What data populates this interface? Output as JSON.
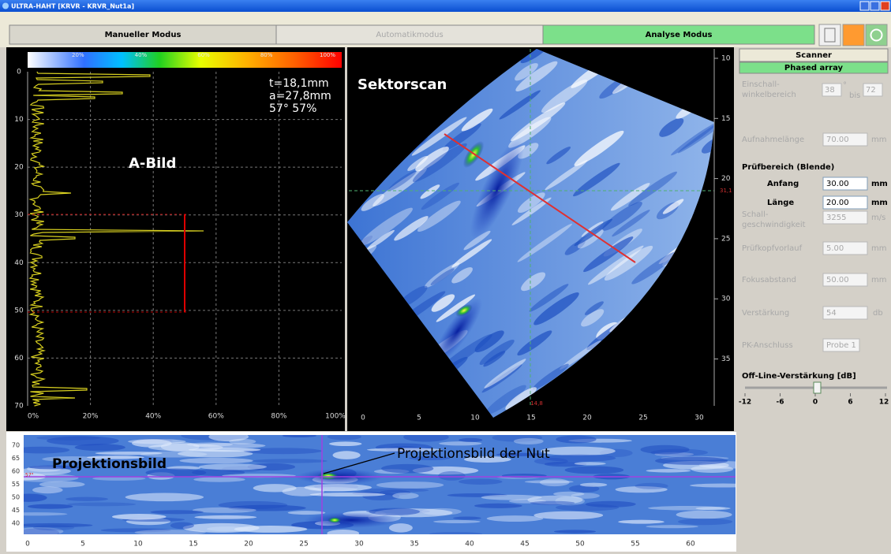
{
  "window": {
    "title": "ULTRA-HAHT [KRVR - KRVR_Nut1a]"
  },
  "tabs": [
    "Manueller Modus",
    "Automatikmodus",
    "Analyse Modus"
  ],
  "a_bild": {
    "label": "A-Bild",
    "color_scale_labels": [
      "20%",
      "40%",
      "60%",
      "80%",
      "100%"
    ],
    "y_labels": [
      "0",
      "10",
      "20",
      "30",
      "40",
      "50",
      "60",
      "70"
    ],
    "x_labels": [
      "0%",
      "20%",
      "40%",
      "60%",
      "80%",
      "100%"
    ],
    "readout": [
      "t=18,1mm",
      "a=27,8mm",
      "57° 57%"
    ]
  },
  "sektorscan": {
    "label": "Sektorscan",
    "depth_labels": [
      "10",
      "15",
      "20",
      "25",
      "30",
      "35"
    ],
    "x_labels": [
      "0",
      "5",
      "10",
      "15",
      "20",
      "25",
      "30"
    ],
    "cursor_labels": [
      "31,1",
      "14,8"
    ]
  },
  "projektionsbild": {
    "label": "Projektionsbild",
    "annotation": "Projektionsbild der Nut",
    "angle_label": "57°",
    "y_labels": [
      "70",
      "65",
      "60",
      "55",
      "50",
      "45",
      "40"
    ],
    "x_labels": [
      "0",
      "5",
      "10",
      "15",
      "20",
      "25",
      "30",
      "35",
      "40",
      "45",
      "50",
      "55",
      "60"
    ]
  },
  "settings": {
    "header": "Scanner",
    "mode": "Phased array",
    "angle_range": {
      "label": [
        "Einschall-",
        "winkelbereich"
      ],
      "from": "38",
      "sep": "bis",
      "to": "72",
      "unit": "°"
    },
    "recording_length": {
      "label": "Aufnahmelänge",
      "value": "70.00",
      "unit": "mm"
    },
    "test_range": {
      "label": "Prüfbereich (Blende)",
      "start": {
        "label": "Anfang",
        "value": "30.00",
        "unit": "mm"
      },
      "length": {
        "label": "Länge",
        "value": "20.00",
        "unit": "mm"
      }
    },
    "sound_velocity": {
      "label": [
        "Schall-",
        "geschwindigkeit"
      ],
      "value": "3255",
      "unit": "m/s"
    },
    "probe_delay": {
      "label": "Prüfkopfvorlauf",
      "value": "5.00",
      "unit": "mm"
    },
    "focus_distance": {
      "label": "Fokusabstand",
      "value": "50.00",
      "unit": "mm"
    },
    "gain": {
      "label": "Verstärkung",
      "value": "54",
      "unit": "db"
    },
    "pc_port": {
      "label": "PK-Anschluss",
      "value": "Probe 1"
    },
    "offline_gain": {
      "label": "Off-Line-Verstärkung [dB]",
      "scale": [
        "-12",
        "-6",
        "0",
        "6",
        "12"
      ]
    }
  }
}
